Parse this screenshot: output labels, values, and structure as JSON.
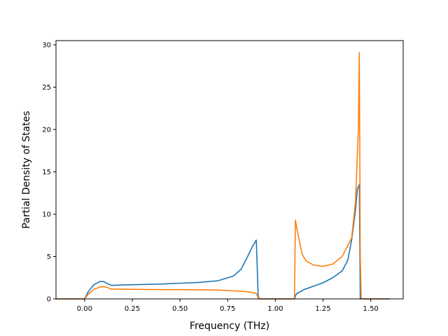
{
  "chart_data": {
    "type": "line",
    "title": "",
    "xlabel": "Frequency (THz)",
    "ylabel": "Partial Density of States",
    "xlim": [
      -0.15,
      1.67
    ],
    "ylim": [
      0,
      30.5
    ],
    "xticks": [
      0.0,
      0.25,
      0.5,
      0.75,
      1.0,
      1.25,
      1.5
    ],
    "xtick_labels": [
      "0.00",
      "0.25",
      "0.50",
      "0.75",
      "1.00",
      "1.25",
      "1.50"
    ],
    "yticks": [
      0,
      5,
      10,
      15,
      20,
      25,
      30
    ],
    "ytick_labels": [
      "0",
      "5",
      "10",
      "15",
      "20",
      "25",
      "30"
    ],
    "grid": false,
    "legend": "none",
    "series": [
      {
        "color": "#1f77b4",
        "x": [
          -0.15,
          0.0,
          0.02,
          0.05,
          0.08,
          0.1,
          0.12,
          0.14,
          0.2,
          0.3,
          0.4,
          0.5,
          0.6,
          0.7,
          0.78,
          0.82,
          0.85,
          0.88,
          0.9,
          0.91,
          0.92,
          1.1,
          1.11,
          1.15,
          1.2,
          1.25,
          1.3,
          1.35,
          1.38,
          1.4,
          1.42,
          1.43,
          1.44,
          1.445,
          1.45,
          1.6
        ],
        "y": [
          0,
          0,
          0.9,
          1.7,
          2.05,
          2.05,
          1.8,
          1.6,
          1.65,
          1.7,
          1.75,
          1.85,
          1.95,
          2.15,
          2.7,
          3.5,
          4.8,
          6.2,
          6.95,
          0.2,
          0,
          0,
          0.6,
          1.1,
          1.5,
          1.9,
          2.5,
          3.3,
          4.6,
          7.0,
          10.5,
          13.0,
          13.5,
          0,
          0,
          0
        ]
      },
      {
        "color": "#ff7f0e",
        "x": [
          -0.15,
          0.0,
          0.02,
          0.05,
          0.08,
          0.1,
          0.12,
          0.14,
          0.2,
          0.3,
          0.4,
          0.5,
          0.6,
          0.7,
          0.78,
          0.82,
          0.85,
          0.88,
          0.9,
          0.91,
          0.92,
          1.1,
          1.105,
          1.12,
          1.14,
          1.16,
          1.2,
          1.25,
          1.3,
          1.35,
          1.38,
          1.4,
          1.42,
          1.435,
          1.44,
          1.445,
          1.45,
          1.6
        ],
        "y": [
          0,
          0,
          0.6,
          1.15,
          1.4,
          1.45,
          1.35,
          1.15,
          1.15,
          1.12,
          1.1,
          1.1,
          1.08,
          1.05,
          0.95,
          0.9,
          0.85,
          0.75,
          0.65,
          0.1,
          0,
          0,
          9.3,
          7.5,
          5.3,
          4.5,
          4.0,
          3.85,
          4.1,
          5.0,
          6.3,
          7.2,
          11.5,
          20.0,
          29.1,
          5.0,
          0,
          0
        ]
      }
    ]
  }
}
